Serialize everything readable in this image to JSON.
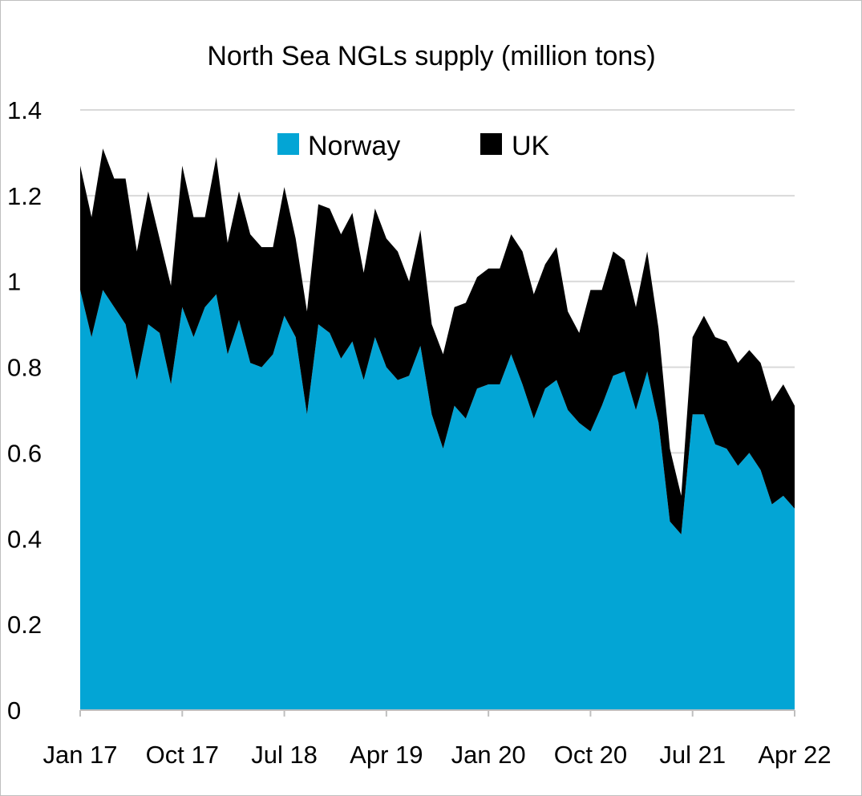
{
  "chart_data": {
    "type": "area",
    "stacked": true,
    "title": "North Sea NGLs supply (million tons)",
    "xlabel": "",
    "ylabel": "",
    "ylim": [
      0,
      1.4
    ],
    "yticks": [
      "0",
      "0.2",
      "0.4",
      "0.6",
      "0.8",
      "1",
      "1.2",
      "1.4"
    ],
    "grid": true,
    "legend": "top-center",
    "xtick_labels": [
      "Jan 17",
      "Oct 17",
      "Jul 18",
      "Apr 19",
      "Jan 20",
      "Oct 20",
      "Jul 21",
      "Apr 22"
    ],
    "categories": [
      "Jan 17",
      "Feb 17",
      "Mar 17",
      "Apr 17",
      "May 17",
      "Jun 17",
      "Jul 17",
      "Aug 17",
      "Sep 17",
      "Oct 17",
      "Nov 17",
      "Dec 17",
      "Jan 18",
      "Feb 18",
      "Mar 18",
      "Apr 18",
      "May 18",
      "Jun 18",
      "Jul 18",
      "Aug 18",
      "Sep 18",
      "Oct 18",
      "Nov 18",
      "Dec 18",
      "Jan 19",
      "Feb 19",
      "Mar 19",
      "Apr 19",
      "May 19",
      "Jun 19",
      "Jul 19",
      "Aug 19",
      "Sep 19",
      "Oct 19",
      "Nov 19",
      "Dec 19",
      "Jan 20",
      "Feb 20",
      "Mar 20",
      "Apr 20",
      "May 20",
      "Jun 20",
      "Jul 20",
      "Aug 20",
      "Sep 20",
      "Oct 20",
      "Nov 20",
      "Dec 20",
      "Jan 21",
      "Feb 21",
      "Mar 21",
      "Apr 21",
      "May 21",
      "Jun 21",
      "Jul 21",
      "Aug 21",
      "Sep 21",
      "Oct 21",
      "Nov 21",
      "Dec 21",
      "Jan 22",
      "Feb 22",
      "Mar 22",
      "Apr 22"
    ],
    "series": [
      {
        "name": "Norway",
        "color": "#03a5d5",
        "values": [
          0.98,
          0.87,
          0.98,
          0.94,
          0.9,
          0.77,
          0.9,
          0.88,
          0.76,
          0.94,
          0.87,
          0.94,
          0.97,
          0.83,
          0.91,
          0.81,
          0.8,
          0.83,
          0.92,
          0.87,
          0.69,
          0.9,
          0.88,
          0.82,
          0.86,
          0.77,
          0.87,
          0.8,
          0.77,
          0.78,
          0.85,
          0.69,
          0.61,
          0.71,
          0.68,
          0.75,
          0.76,
          0.76,
          0.83,
          0.76,
          0.68,
          0.75,
          0.77,
          0.7,
          0.67,
          0.65,
          0.71,
          0.78,
          0.79,
          0.7,
          0.79,
          0.67,
          0.44,
          0.41,
          0.69,
          0.69,
          0.62,
          0.61,
          0.57,
          0.6,
          0.56,
          0.48,
          0.5,
          0.47
        ]
      },
      {
        "name": "UK",
        "color": "#000000",
        "values": [
          0.29,
          0.28,
          0.33,
          0.3,
          0.34,
          0.3,
          0.31,
          0.22,
          0.23,
          0.33,
          0.28,
          0.21,
          0.32,
          0.26,
          0.3,
          0.3,
          0.28,
          0.25,
          0.3,
          0.23,
          0.24,
          0.28,
          0.29,
          0.29,
          0.3,
          0.25,
          0.3,
          0.3,
          0.3,
          0.22,
          0.27,
          0.21,
          0.22,
          0.23,
          0.27,
          0.26,
          0.27,
          0.27,
          0.28,
          0.31,
          0.29,
          0.29,
          0.31,
          0.23,
          0.21,
          0.33,
          0.27,
          0.29,
          0.26,
          0.24,
          0.28,
          0.22,
          0.17,
          0.09,
          0.18,
          0.23,
          0.25,
          0.25,
          0.24,
          0.24,
          0.25,
          0.24,
          0.26,
          0.24
        ]
      }
    ]
  }
}
